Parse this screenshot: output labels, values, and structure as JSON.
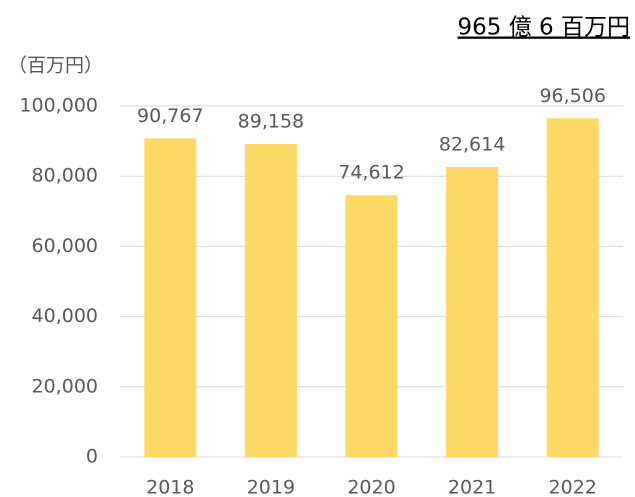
{
  "chart_data": {
    "type": "bar",
    "title": "965 億 6 百万円",
    "y_label": "（百万円）",
    "categories": [
      "2018",
      "2019",
      "2020",
      "2021",
      "2022"
    ],
    "values": [
      90767,
      89158,
      74612,
      82614,
      96506
    ],
    "value_labels": [
      "90,767",
      "89,158",
      "74,612",
      "82,614",
      "96,506"
    ],
    "color": "#fdd865",
    "ylim": [
      0,
      100000
    ],
    "yticks": [
      0,
      {
        "value": 20000,
        "label": "20,000"
      },
      {
        "value": 40000,
        "label": "40,000"
      },
      {
        "value": 60000,
        "label": "60,000"
      },
      {
        "value": 80000,
        "label": "80,000"
      },
      {
        "value": 100000,
        "label": "100,000"
      }
    ],
    "grid": true
  }
}
